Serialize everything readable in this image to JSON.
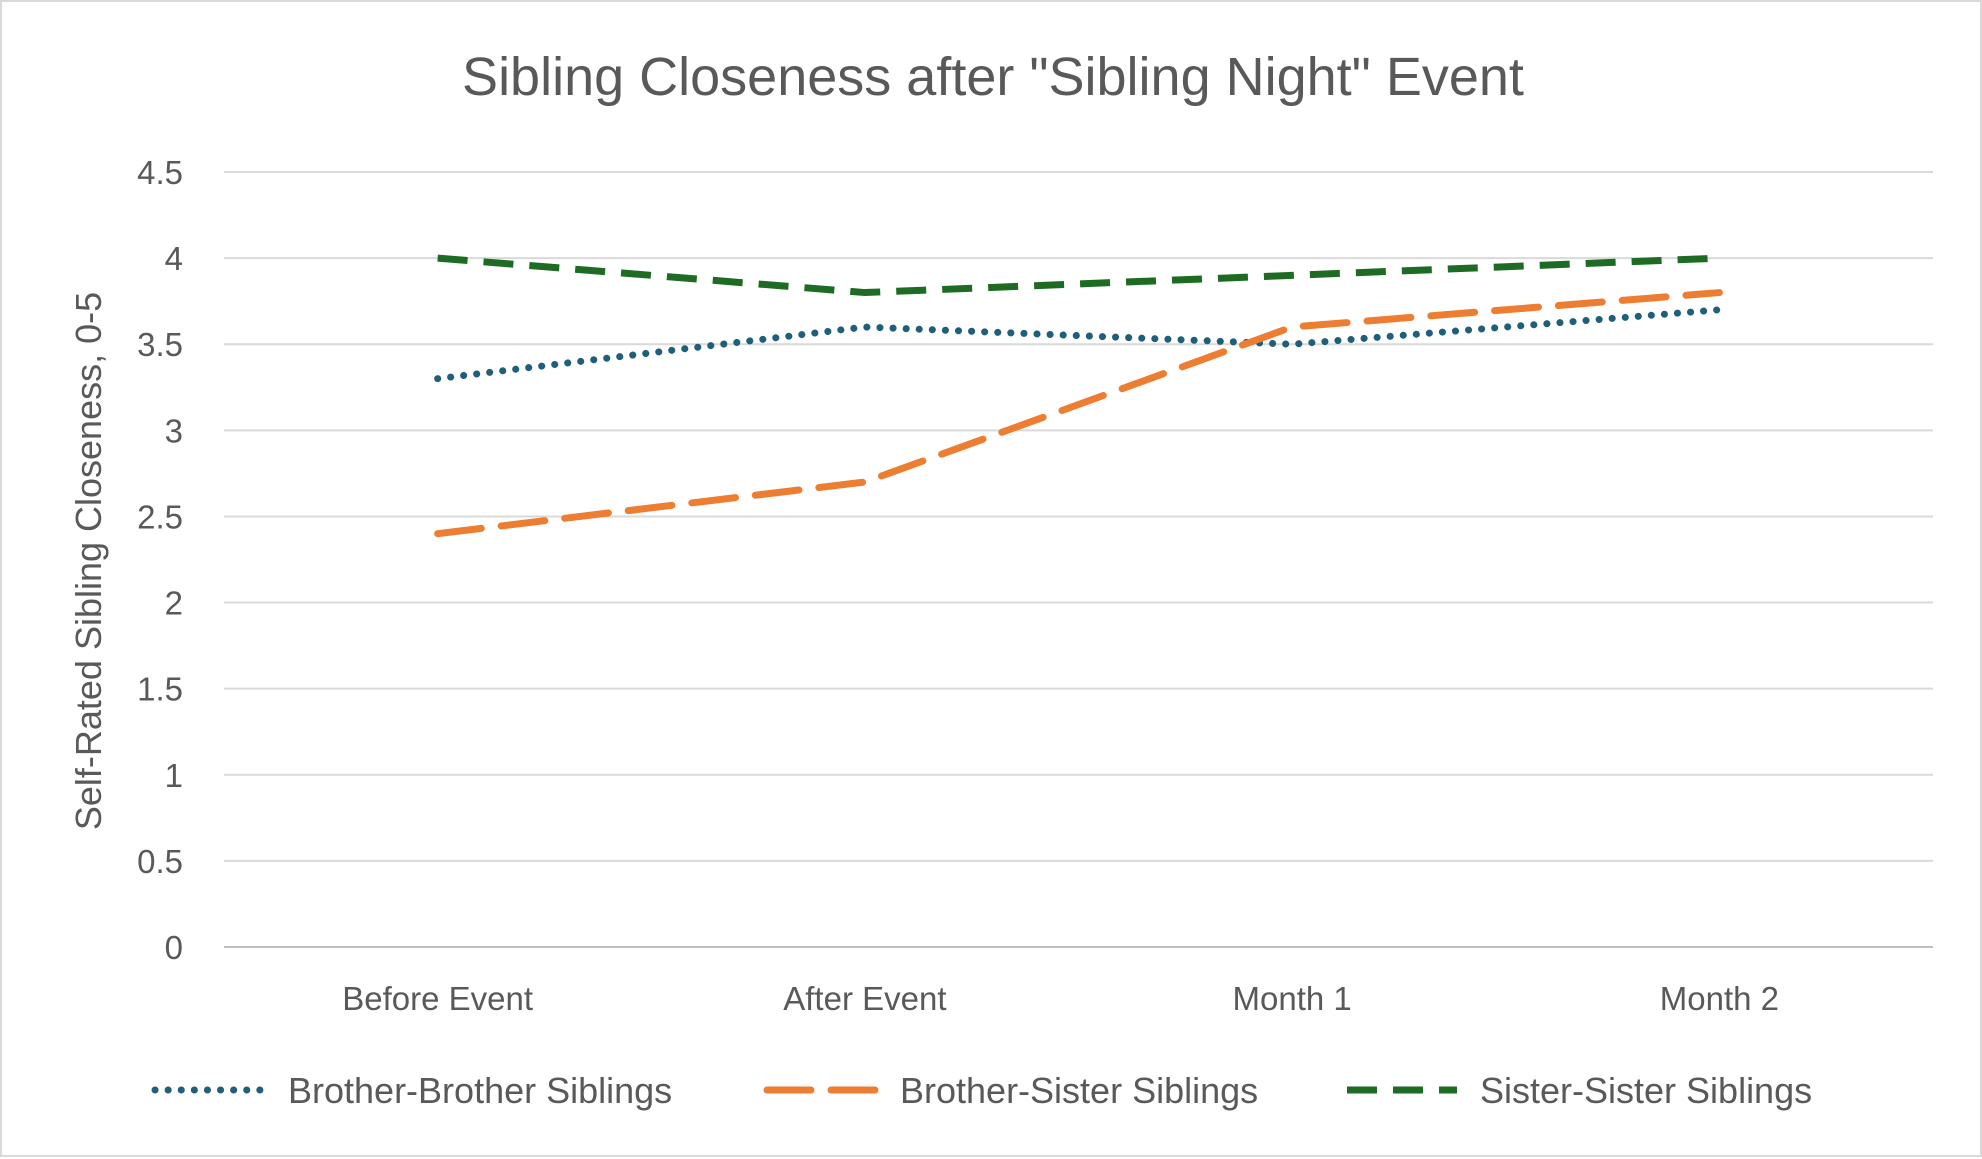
{
  "chart_data": {
    "type": "line",
    "title": "Sibling Closeness after \"Sibling Night\" Event",
    "xlabel": "",
    "ylabel": "Self-Rated Sibling Closeness, 0-5",
    "categories": [
      "Before Event",
      "After Event",
      "Month 1",
      "Month 2"
    ],
    "ylim": [
      0,
      4.5
    ],
    "yticks": [
      "0",
      "0.5",
      "1",
      "1.5",
      "2",
      "2.5",
      "3",
      "3.5",
      "4",
      "4.5"
    ],
    "grid": true,
    "legend_position": "bottom",
    "series": [
      {
        "name": "Brother-Brother Siblings",
        "values": [
          3.3,
          3.6,
          3.5,
          3.7
        ],
        "color": "#1f5f7a",
        "style": "dotted"
      },
      {
        "name": "Brother-Sister Siblings",
        "values": [
          2.4,
          2.7,
          3.6,
          3.8
        ],
        "color": "#ed7d31",
        "style": "long-dash"
      },
      {
        "name": "Sister-Sister Siblings",
        "values": [
          4.0,
          3.8,
          3.9,
          4.0
        ],
        "color": "#1e6b24",
        "style": "dash"
      }
    ]
  }
}
